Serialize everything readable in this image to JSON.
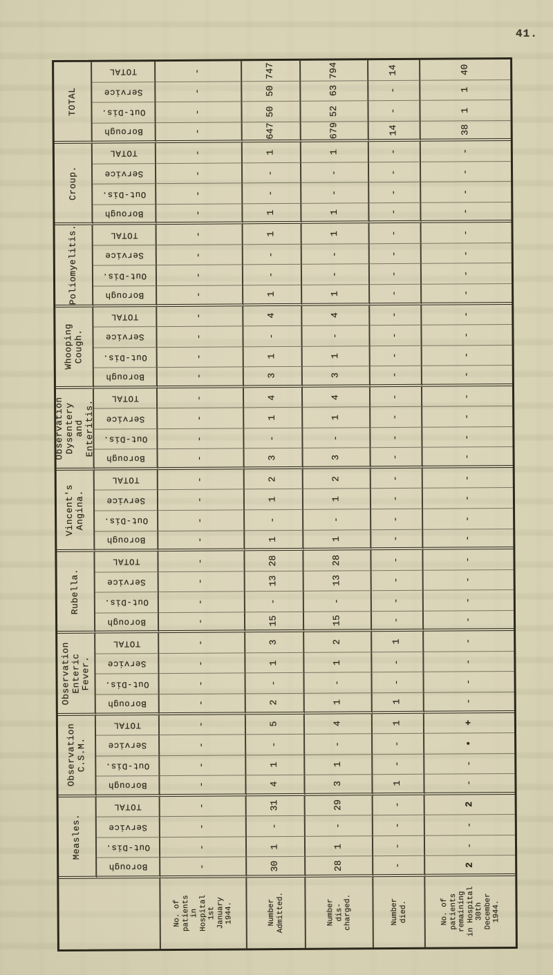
{
  "page": {
    "number": "41."
  },
  "paper": {
    "background": "#d9d3b5",
    "ink": "#2a2619",
    "line_color": "#28241a"
  },
  "table": {
    "orientation": "rotated-landscape",
    "row_captions": [
      "TOTAL",
      "Service",
      "Out-Dis.",
      "Borough"
    ],
    "column_captions": [
      "No. of\npatients\nin\nHospital\n1st\nJanuary\n1944.",
      "Number\nAdmitted.",
      "Number\ndis-\ncharged.",
      "Number\ndied.",
      "No. of\npatients\nremaining\nin Hospital\n30th\nDecember\n1944."
    ],
    "groups": [
      {
        "label": "TOTAL",
        "rows": [
          [
            "-",
            "747",
            "794",
            "14",
            "40"
          ],
          [
            "-",
            "50",
            "63",
            "-",
            "1"
          ],
          [
            "-",
            "50",
            "52",
            "-",
            "1"
          ],
          [
            "-",
            "647",
            "679",
            "14",
            "38"
          ]
        ]
      },
      {
        "label": "Croup.",
        "rows": [
          [
            "-",
            "1",
            "1",
            "-",
            "-"
          ],
          [
            "-",
            "-",
            "-",
            "-",
            "-"
          ],
          [
            "-",
            "-",
            "-",
            "-",
            "-"
          ],
          [
            "-",
            "1",
            "1",
            "-",
            "-"
          ]
        ]
      },
      {
        "label": "Poliomyelitis.",
        "rows": [
          [
            "-",
            "1",
            "1",
            "-",
            "-"
          ],
          [
            "-",
            "-",
            "-",
            "-",
            "-"
          ],
          [
            "-",
            "-",
            "-",
            "-",
            "-"
          ],
          [
            "-",
            "1",
            "1",
            "-",
            "-"
          ]
        ]
      },
      {
        "label": "Whooping\nCough.",
        "rows": [
          [
            "-",
            "4",
            "4",
            "-",
            "-"
          ],
          [
            "-",
            "-",
            "-",
            "-",
            "-"
          ],
          [
            "-",
            "1",
            "1",
            "-",
            "-"
          ],
          [
            "-",
            "3",
            "3",
            "-",
            "-"
          ]
        ]
      },
      {
        "label": "Observation\nDysentery\nand Enteritis.",
        "rows": [
          [
            "-",
            "4",
            "4",
            "-",
            "-"
          ],
          [
            "-",
            "1",
            "1",
            "-",
            "-"
          ],
          [
            "-",
            "-",
            "-",
            "-",
            "-"
          ],
          [
            "-",
            "3",
            "3",
            "-",
            "-"
          ]
        ]
      },
      {
        "label": "Vincent's\nAngina.",
        "rows": [
          [
            "-",
            "2",
            "2",
            "-",
            "-"
          ],
          [
            "-",
            "1",
            "1",
            "-",
            "-"
          ],
          [
            "-",
            "-",
            "-",
            "-",
            "-"
          ],
          [
            "-",
            "1",
            "1",
            "-",
            "-"
          ]
        ]
      },
      {
        "label": "Rubella.",
        "rows": [
          [
            "-",
            "28",
            "28",
            "-",
            "-"
          ],
          [
            "-",
            "13",
            "13",
            "-",
            "-"
          ],
          [
            "-",
            "-",
            "-",
            "-",
            "-"
          ],
          [
            "-",
            "15",
            "15",
            "-",
            "-"
          ]
        ]
      },
      {
        "label": "Observation\nEnteric Fever.",
        "rows": [
          [
            "-",
            "3",
            "2",
            "1",
            "-"
          ],
          [
            "-",
            "1",
            "1",
            "-",
            "-"
          ],
          [
            "-",
            "-",
            "-",
            "-",
            "-"
          ],
          [
            "-",
            "2",
            "1",
            "1",
            "-"
          ]
        ]
      },
      {
        "label": "Observation\nC.S.M.",
        "rows": [
          [
            "-",
            "5",
            "4",
            "1",
            "+"
          ],
          [
            "-",
            "-",
            "-",
            "-",
            "•"
          ],
          [
            "-",
            "1",
            "1",
            "-",
            "-"
          ],
          [
            "-",
            "4",
            "3",
            "1",
            "-"
          ]
        ]
      },
      {
        "label": "Measles.",
        "rows": [
          [
            "-",
            "31",
            "29",
            "-",
            "2"
          ],
          [
            "-",
            "-",
            "-",
            "-",
            "-"
          ],
          [
            "-",
            "1",
            "1",
            "-",
            "-"
          ],
          [
            "-",
            "30",
            "28",
            "-",
            "2"
          ]
        ]
      }
    ],
    "heavy_cells": [
      [
        8,
        0,
        4
      ],
      [
        8,
        1,
        4
      ],
      [
        9,
        0,
        4
      ],
      [
        9,
        3,
        4
      ]
    ]
  }
}
